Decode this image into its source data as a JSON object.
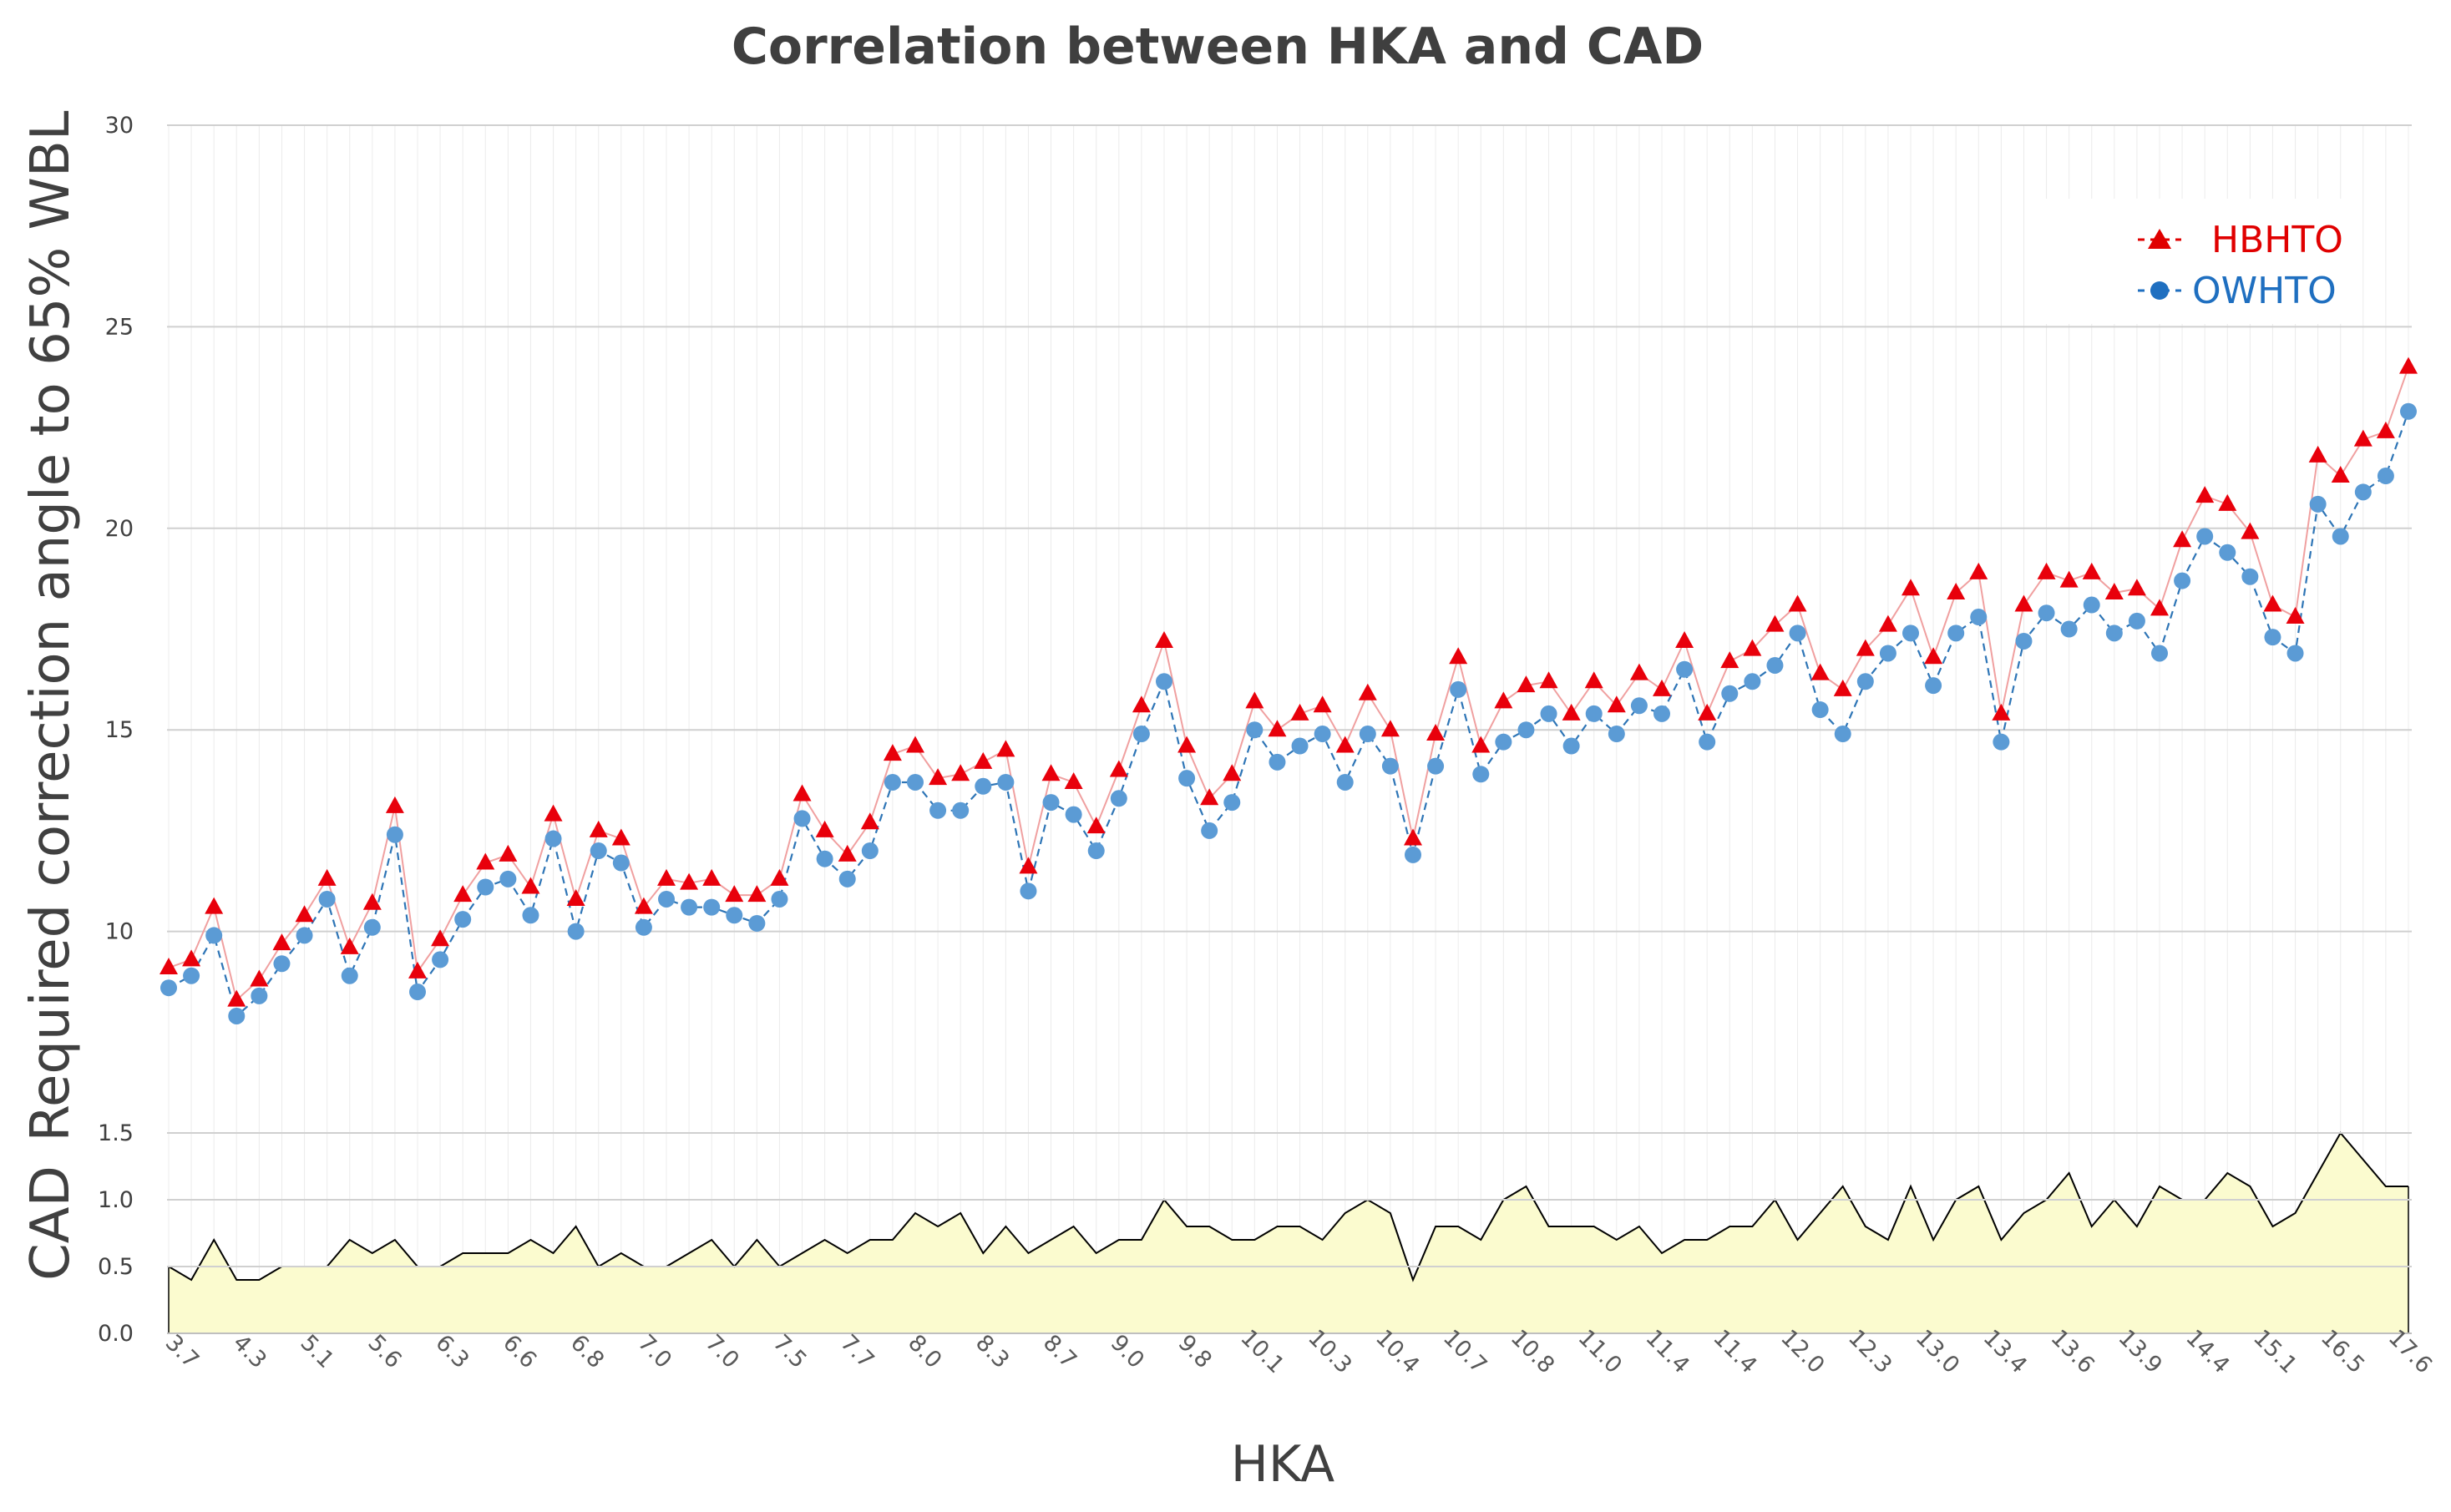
{
  "chart_data": {
    "type": "line",
    "title": "Correlation between HKA and CAD",
    "xlabel": "HKA",
    "top_panel": {
      "ylabel": "Required correction angle to 65% WBL",
      "ylim": [
        5,
        30
      ],
      "yticks": [
        "10",
        "15",
        "20",
        "25",
        "30"
      ],
      "series": [
        {
          "name": "HBHTO",
          "color": "#e00000",
          "marker": "triangle",
          "values": [
            9.1,
            9.3,
            10.6,
            8.3,
            8.8,
            9.7,
            10.4,
            11.3,
            9.6,
            10.7,
            13.1,
            9.0,
            9.8,
            10.9,
            11.7,
            11.9,
            11.1,
            12.9,
            10.8,
            12.5,
            12.3,
            10.6,
            11.3,
            11.2,
            11.3,
            10.9,
            10.9,
            11.3,
            13.4,
            12.5,
            11.9,
            12.7,
            14.4,
            14.6,
            13.8,
            13.9,
            14.2,
            14.5,
            11.6,
            13.9,
            13.7,
            12.6,
            14.0,
            15.6,
            17.2,
            14.6,
            13.3,
            13.9,
            15.7,
            15.0,
            15.4,
            15.6,
            14.6,
            15.9,
            15.0,
            12.3,
            14.9,
            16.8,
            14.6,
            15.7,
            16.1,
            16.2,
            15.4,
            16.2,
            15.6,
            16.4,
            16.0,
            17.2,
            15.4,
            16.7,
            17.0,
            17.6,
            18.1,
            16.4,
            16.0,
            17.0,
            17.6,
            18.5,
            16.8,
            18.4,
            18.9,
            15.4,
            18.1,
            18.9,
            18.7,
            18.9,
            18.4,
            18.5,
            18.0,
            19.7,
            20.8,
            20.6,
            19.9,
            18.1,
            17.8,
            21.8,
            21.3,
            22.2,
            22.4,
            24.0
          ]
        },
        {
          "name": "OWHTO",
          "color": "#1f6fc0",
          "marker": "circle",
          "values": [
            8.6,
            8.9,
            9.9,
            7.9,
            8.4,
            9.2,
            9.9,
            10.8,
            8.9,
            10.1,
            12.4,
            8.5,
            9.3,
            10.3,
            11.1,
            11.3,
            10.4,
            12.3,
            10.0,
            12.0,
            11.7,
            10.1,
            10.8,
            10.6,
            10.6,
            10.4,
            10.2,
            10.8,
            12.8,
            11.8,
            11.3,
            12.0,
            13.7,
            13.7,
            13.0,
            13.0,
            13.6,
            13.7,
            11.0,
            13.2,
            12.9,
            12.0,
            13.3,
            14.9,
            16.2,
            13.8,
            12.5,
            13.2,
            15.0,
            14.2,
            14.6,
            14.9,
            13.7,
            14.9,
            14.1,
            11.9,
            14.1,
            16.0,
            13.9,
            14.7,
            15.0,
            15.4,
            14.6,
            15.4,
            14.9,
            15.6,
            15.4,
            16.5,
            14.7,
            15.9,
            16.2,
            16.6,
            17.4,
            15.5,
            14.9,
            16.2,
            16.9,
            17.4,
            16.1,
            17.4,
            17.8,
            14.7,
            17.2,
            17.9,
            17.5,
            18.1,
            17.4,
            17.7,
            16.9,
            18.7,
            19.8,
            19.4,
            18.8,
            17.3,
            16.9,
            20.6,
            19.8,
            20.9,
            21.3,
            22.9
          ]
        }
      ]
    },
    "bottom_panel": {
      "type": "area",
      "ylabel": "CAD",
      "ylim": [
        0,
        1.5
      ],
      "yticks": [
        "0.0",
        "0.5",
        "1.0",
        "1.5"
      ],
      "series": [
        {
          "name": "CAD",
          "color": "#000000",
          "fill": "#fbfbcf",
          "values": [
            0.5,
            0.4,
            0.7,
            0.4,
            0.4,
            0.5,
            0.5,
            0.5,
            0.7,
            0.6,
            0.7,
            0.5,
            0.5,
            0.6,
            0.6,
            0.6,
            0.7,
            0.6,
            0.8,
            0.5,
            0.6,
            0.5,
            0.5,
            0.6,
            0.7,
            0.5,
            0.7,
            0.5,
            0.6,
            0.7,
            0.6,
            0.7,
            0.7,
            0.9,
            0.8,
            0.9,
            0.6,
            0.8,
            0.6,
            0.7,
            0.8,
            0.6,
            0.7,
            0.7,
            1.0,
            0.8,
            0.8,
            0.7,
            0.7,
            0.8,
            0.8,
            0.7,
            0.9,
            1.0,
            0.9,
            0.4,
            0.8,
            0.8,
            0.7,
            1.0,
            1.1,
            0.8,
            0.8,
            0.8,
            0.7,
            0.8,
            0.6,
            0.7,
            0.7,
            0.8,
            0.8,
            1.0,
            0.7,
            0.9,
            1.1,
            0.8,
            0.7,
            1.1,
            0.7,
            1.0,
            1.1,
            0.7,
            0.9,
            1.0,
            1.2,
            0.8,
            1.0,
            0.8,
            1.1,
            1.0,
            1.0,
            1.2,
            1.1,
            0.8,
            0.9,
            1.2,
            1.5,
            1.3,
            1.1,
            1.1
          ]
        }
      ]
    },
    "x_tick_labels": [
      "3.7",
      "4.3",
      "5.1",
      "5.6",
      "6.3",
      "6.6",
      "6.8",
      "7.0",
      "7.0",
      "7.5",
      "7.7",
      "8.0",
      "8.3",
      "8.7",
      "9.0",
      "9.8",
      "10.1",
      "10.3",
      "10.4",
      "10.7",
      "10.8",
      "11.0",
      "11.4",
      "11.4",
      "12.0",
      "12.3",
      "13.0",
      "13.4",
      "13.6",
      "13.9",
      "14.4",
      "15.1",
      "16.5",
      "17.6"
    ],
    "legend": {
      "position": "top-right",
      "entries": [
        "HBHTO",
        "OWHTO"
      ]
    }
  }
}
